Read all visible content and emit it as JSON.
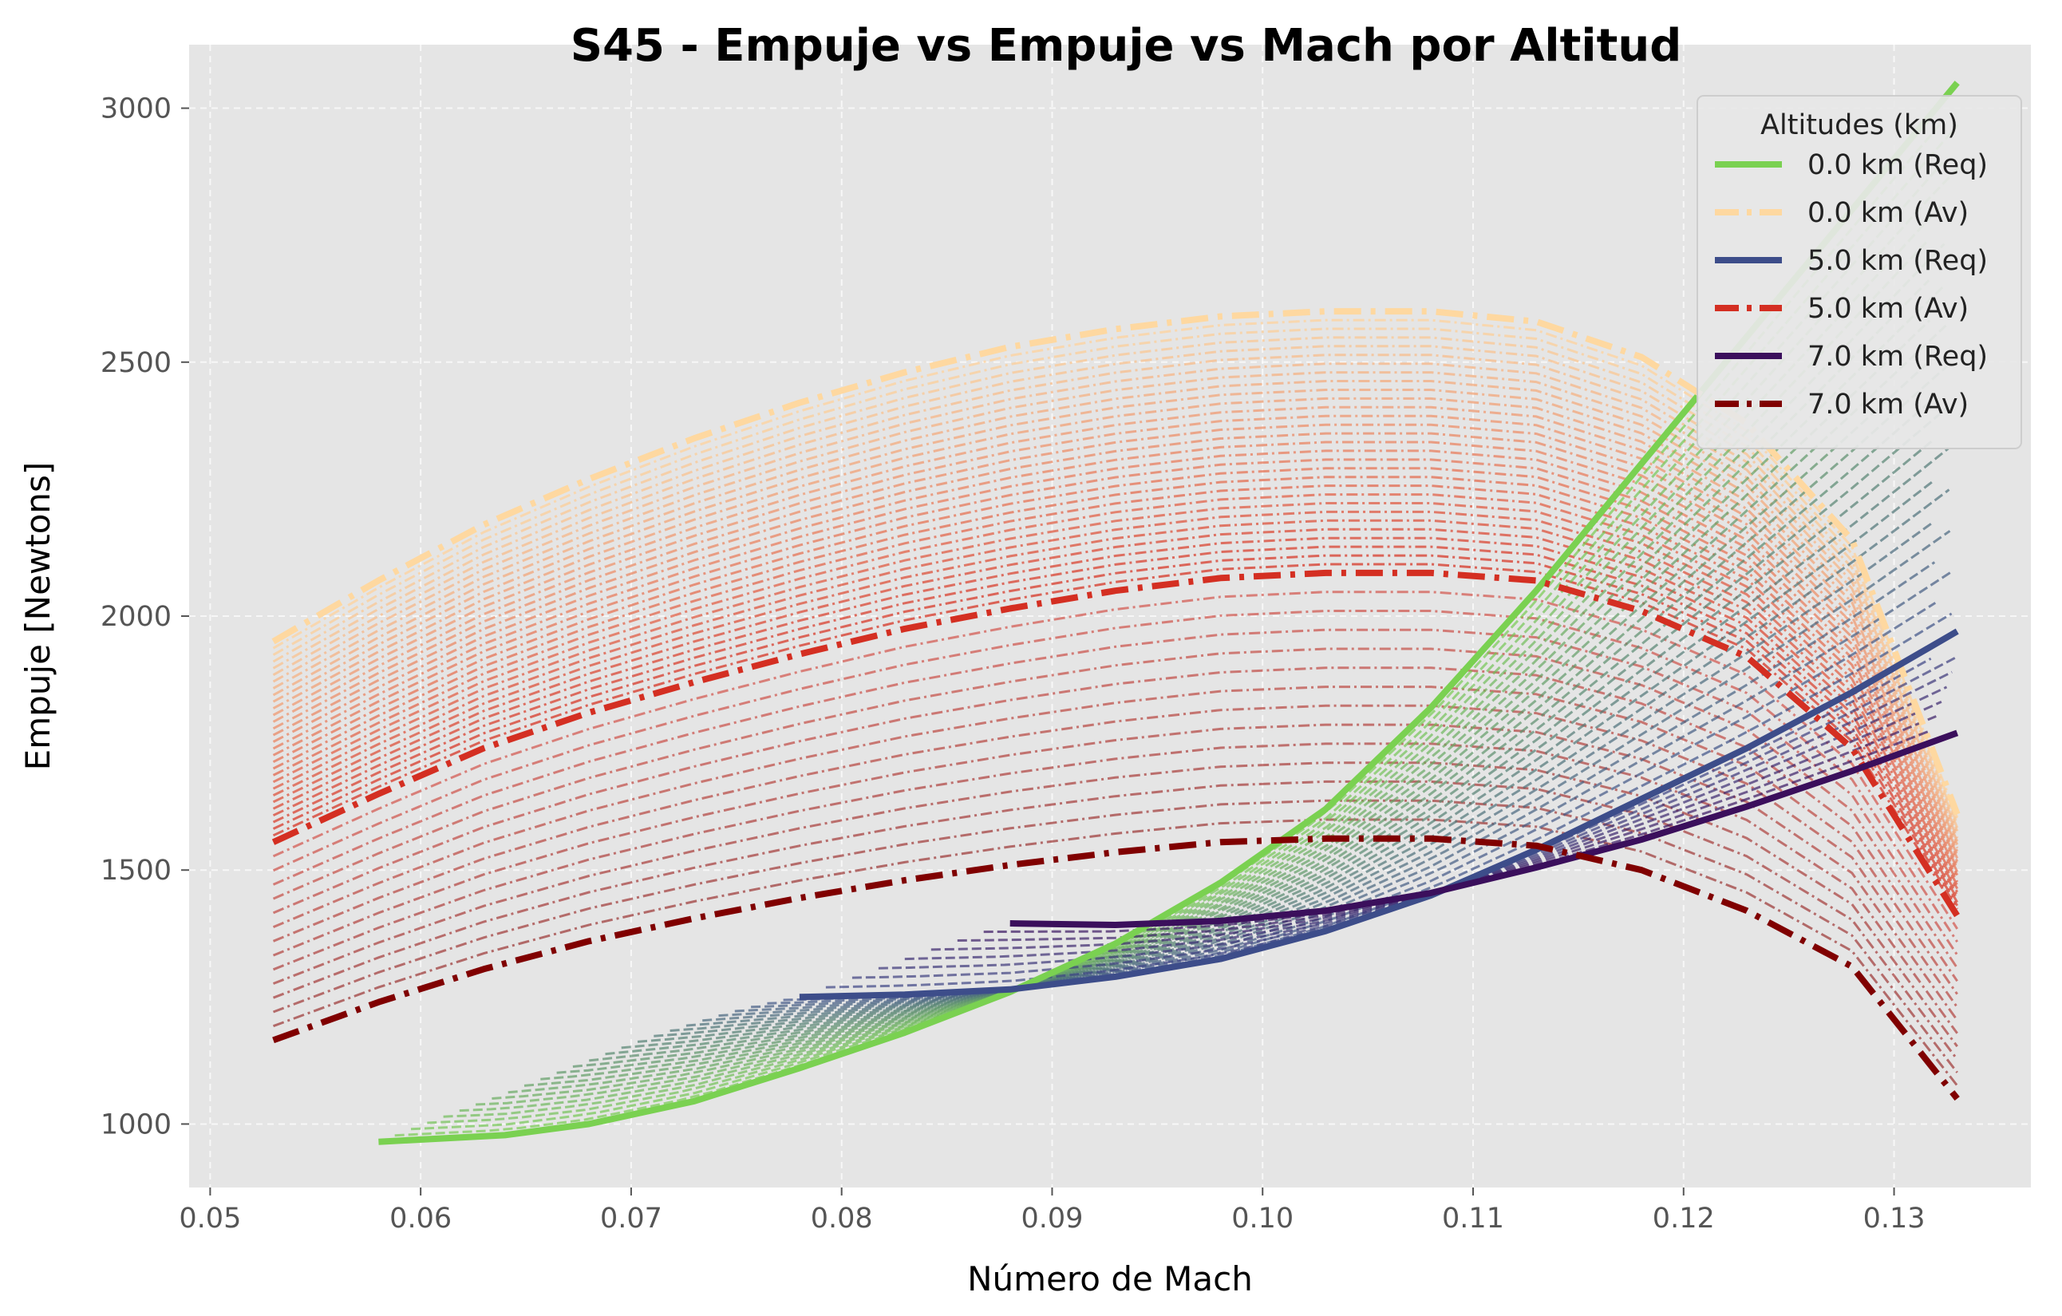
{
  "chart_data": {
    "type": "line",
    "title": "S45 - Empuje vs Empuje vs Mach por Altitud",
    "xlabel": "Número de Mach",
    "ylabel": "Empuje [Newtons]",
    "xlim": [
      0.049,
      0.1365
    ],
    "ylim": [
      875,
      3125
    ],
    "x_ticks": [
      0.05,
      0.06,
      0.07,
      0.08,
      0.09,
      0.1,
      0.11,
      0.12,
      0.13
    ],
    "x_tick_labels": [
      "0.05",
      "0.06",
      "0.07",
      "0.08",
      "0.09",
      "0.10",
      "0.11",
      "0.12",
      "0.13"
    ],
    "y_ticks": [
      1000,
      1500,
      2000,
      2500,
      3000
    ],
    "y_tick_labels": [
      "1000",
      "1500",
      "2000",
      "2500",
      "3000"
    ],
    "grid": true,
    "background": "#e5e5e5",
    "legend": {
      "title": "Altitudes (km)",
      "placement": "top-right",
      "entries": [
        "0.0 km (Req)",
        "0.0 km (Av)",
        "5.0 km (Req)",
        "5.0 km (Av)",
        "7.0 km (Req)",
        "7.0 km (Av)"
      ]
    },
    "series": [
      {
        "name": "0.0 km (Req)",
        "style": "solid",
        "color": "#7ad151",
        "x": [
          0.058,
          0.064,
          0.068,
          0.073,
          0.078,
          0.083,
          0.088,
          0.093,
          0.098,
          0.103,
          0.108,
          0.113,
          0.118,
          0.123,
          0.128,
          0.133
        ],
        "y": [
          965,
          978,
          1000,
          1045,
          1110,
          1180,
          1260,
          1355,
          1475,
          1620,
          1820,
          2050,
          2300,
          2550,
          2800,
          3050
        ]
      },
      {
        "name": "0.0 km (Av)",
        "style": "dashdot",
        "color": "#fed8a0",
        "x": [
          0.053,
          0.058,
          0.063,
          0.068,
          0.073,
          0.078,
          0.083,
          0.088,
          0.093,
          0.098,
          0.103,
          0.108,
          0.113,
          0.118,
          0.123,
          0.128,
          0.133
        ],
        "y": [
          1950,
          2070,
          2180,
          2270,
          2350,
          2420,
          2480,
          2530,
          2565,
          2590,
          2600,
          2600,
          2580,
          2510,
          2380,
          2150,
          1610
        ]
      },
      {
        "name": "5.0 km (Req)",
        "style": "solid",
        "color": "#3d4d8a",
        "x": [
          0.078,
          0.083,
          0.088,
          0.093,
          0.098,
          0.103,
          0.108,
          0.113,
          0.118,
          0.123,
          0.128,
          0.133
        ],
        "y": [
          1250,
          1255,
          1265,
          1290,
          1325,
          1380,
          1450,
          1540,
          1640,
          1740,
          1850,
          1970
        ]
      },
      {
        "name": "5.0 km (Av)",
        "style": "dashdot",
        "color": "#d42f22",
        "x": [
          0.053,
          0.058,
          0.063,
          0.068,
          0.073,
          0.078,
          0.083,
          0.088,
          0.093,
          0.098,
          0.103,
          0.108,
          0.113,
          0.118,
          0.123,
          0.128,
          0.133
        ],
        "y": [
          1555,
          1650,
          1740,
          1810,
          1870,
          1925,
          1975,
          2015,
          2050,
          2075,
          2085,
          2085,
          2070,
          2010,
          1920,
          1740,
          1410
        ]
      },
      {
        "name": "7.0 km (Req)",
        "style": "solid",
        "color": "#3b0f5c",
        "x": [
          0.088,
          0.093,
          0.098,
          0.103,
          0.108,
          0.113,
          0.118,
          0.123,
          0.128,
          0.133
        ],
        "y": [
          1395,
          1392,
          1400,
          1420,
          1455,
          1505,
          1560,
          1625,
          1695,
          1770
        ]
      },
      {
        "name": "7.0 km (Av)",
        "style": "dashdot",
        "color": "#800000",
        "x": [
          0.053,
          0.058,
          0.063,
          0.068,
          0.073,
          0.078,
          0.083,
          0.088,
          0.093,
          0.098,
          0.103,
          0.108,
          0.113,
          0.118,
          0.123,
          0.128,
          0.133
        ],
        "y": [
          1165,
          1240,
          1305,
          1360,
          1405,
          1445,
          1480,
          1510,
          1535,
          1555,
          1562,
          1562,
          1548,
          1500,
          1420,
          1310,
          1050
        ]
      }
    ]
  }
}
